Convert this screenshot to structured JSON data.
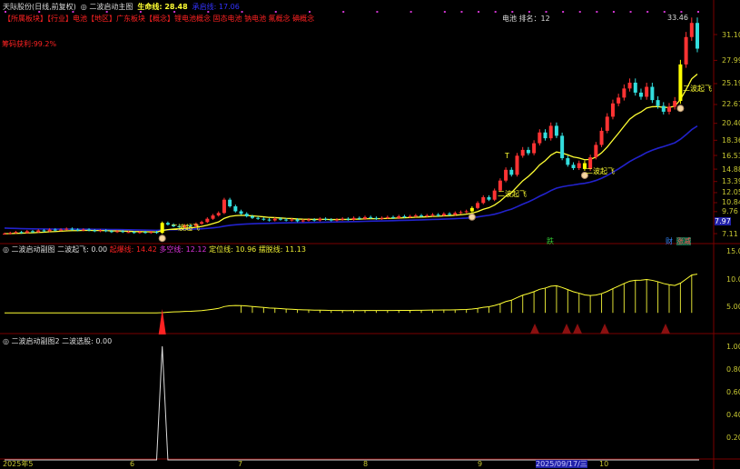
{
  "header": {
    "stock": "天际股份(日线,前复权)",
    "indicator": "二波启动主图",
    "life_label": "生命线:",
    "life_value": "28.48",
    "cheng_label": "承启线:",
    "cheng_value": "17.06"
  },
  "sector_line": "【所属板块】【行业】电池【地区】广东板块【概念】锂电池概念 固态电池 钠电池 氟概念 碘概念",
  "profit_text": "筹码获利:99.2%",
  "rank_text": "电池 排名：12",
  "high_label": "33.46",
  "signal_label": "二波起飞",
  "markers": {
    "t": "T",
    "die": "跌",
    "cai": "财",
    "zhang": "涨减"
  },
  "sub1": {
    "title": "二波启动副图",
    "fly_label": "二波起飞:",
    "fly_value": "0.00",
    "l1": "起爆线:",
    "v1": "14.42",
    "l2": "多空线:",
    "v2": "12.12",
    "l3": "定位线:",
    "v3": "10.96",
    "l4": "摆脱线:",
    "v4": "11.13"
  },
  "sub2": {
    "title": "二波启动副图2",
    "sel_label": "二波选股:",
    "sel_value": "0.00"
  },
  "colors": {
    "up": "#ff3333",
    "down": "#33dddd",
    "signal": "#ffff00",
    "life": "#ffff33",
    "cheng": "#2222cc",
    "axis": "#c8c832",
    "grid": "#7a0000"
  },
  "chart_data": {
    "type": "candlestick",
    "price_axis_ticks": [
      "31.10",
      "27.99",
      "25.19",
      "22.67",
      "20.40",
      "18.36",
      "16.53",
      "14.88",
      "13.39",
      "12.05",
      "10.84",
      "9.76",
      "7.11"
    ],
    "current_price": "7.97",
    "sub1_ticks": [
      "15.00",
      "10.00",
      "5.00"
    ],
    "sub2_ticks": [
      "1.00",
      "0.80",
      "0.60",
      "0.40",
      "0.20"
    ],
    "x_ticks": [
      "2025年5",
      "6",
      "7",
      "8",
      "9",
      "2025/09/17/三",
      "10"
    ],
    "closes": [
      7.1,
      7.2,
      7.3,
      7.2,
      7.4,
      7.3,
      7.5,
      7.4,
      7.6,
      7.5,
      7.6,
      7.7,
      7.6,
      7.5,
      7.6,
      7.5,
      7.4,
      7.5,
      7.4,
      7.3,
      7.4,
      7.3,
      7.3,
      7.2,
      7.3,
      7.2,
      7.3,
      7.2,
      8.4,
      8.2,
      8.0,
      7.9,
      8.1,
      8.0,
      8.3,
      8.5,
      8.9,
      9.3,
      9.6,
      11.2,
      10.4,
      9.8,
      9.5,
      9.2,
      9.0,
      8.9,
      8.8,
      8.7,
      8.9,
      8.8,
      8.7,
      8.8,
      8.6,
      8.7,
      8.8,
      8.7,
      8.9,
      8.8,
      8.7,
      8.8,
      8.9,
      8.8,
      9.0,
      8.9,
      9.1,
      9.0,
      8.9,
      9.0,
      9.1,
      9.0,
      9.2,
      9.1,
      9.2,
      9.3,
      9.2,
      9.3,
      9.4,
      9.3,
      9.5,
      9.4,
      9.6,
      9.7,
      9.8,
      10.2,
      10.8,
      11.5,
      11.2,
      12.3,
      13.5,
      14.8,
      14.2,
      16.5,
      17.2,
      16.8,
      18.0,
      19.3,
      18.6,
      20.1,
      18.9,
      16.2,
      15.4,
      15.0,
      15.6,
      14.9,
      16.3,
      17.8,
      19.5,
      21.2,
      22.8,
      23.5,
      24.6,
      25.3,
      24.1,
      23.6,
      24.8,
      23.2,
      22.5,
      21.8,
      22.4,
      23.1,
      27.5,
      30.8,
      32.5,
      29.4
    ],
    "signal_days": [
      28,
      83,
      103,
      120
    ]
  }
}
